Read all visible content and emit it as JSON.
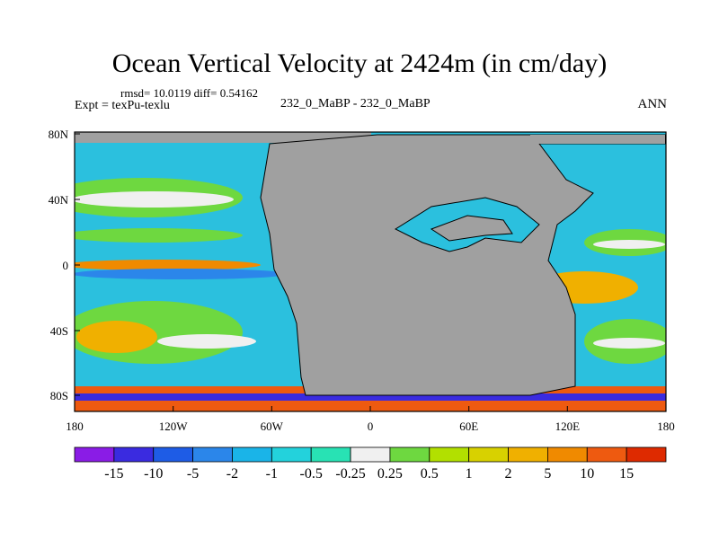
{
  "title": "Ocean Vertical Velocity at 2424m (in cm/day)",
  "stats_line": "rmsd= 10.0119 diff= 0.54162",
  "expt_line": "Expt = texPu-texlu",
  "case_line": "232_0_MaBP - 232_0_MaBP",
  "season": "ANN",
  "axes": {
    "lat_ticks": [
      "80N",
      "40N",
      "0",
      "40S",
      "80S"
    ],
    "lon_ticks": [
      "180",
      "120W",
      "60W",
      "0",
      "60E",
      "120E",
      "180"
    ]
  },
  "colorbar": {
    "colors": [
      "#8a1ce6",
      "#3a2be0",
      "#1e5ce6",
      "#2b86ea",
      "#1ab4e8",
      "#23d2dc",
      "#28e2b4",
      "#f0f0f0",
      "#6ed840",
      "#b2e000",
      "#d8d100",
      "#f0b000",
      "#f08a00",
      "#ee5a10",
      "#de2a00"
    ],
    "labels": [
      "-15",
      "-10",
      "-5",
      "-2",
      "-1",
      "-0.5",
      "-0.25",
      "0.25",
      "0.5",
      "1",
      "2",
      "5",
      "10",
      "15"
    ]
  },
  "colors": {
    "land": "#a0a0a0",
    "ocean_base": "#2bc0de",
    "outline": "#000000"
  }
}
